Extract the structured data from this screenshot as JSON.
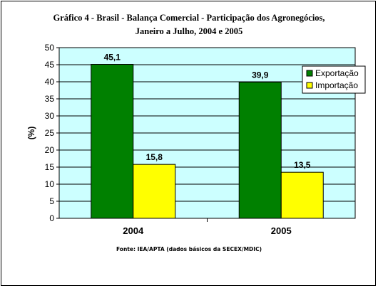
{
  "chart_data": {
    "type": "bar",
    "title": "Gráfico 4 - Brasil - Balança Comercial - Participação dos Agronegócios,",
    "subtitle": "Janeiro a Julho, 2004 e 2005",
    "ylabel": "(%)",
    "xlabel": "",
    "ylim": [
      0,
      50
    ],
    "yticks": [
      0,
      5,
      10,
      15,
      20,
      25,
      30,
      35,
      40,
      45,
      50
    ],
    "categories": [
      "2004",
      "2005"
    ],
    "series": [
      {
        "name": "Exportação",
        "values": [
          45.1,
          39.9
        ],
        "labels": [
          "45,1",
          "39,9"
        ],
        "color": "#008000"
      },
      {
        "name": "Importação",
        "values": [
          15.8,
          13.5
        ],
        "labels": [
          "15,8",
          "13,5"
        ],
        "color": "#FFFF00"
      }
    ],
    "plot_background": "#CCFFFF",
    "grid": true,
    "legend": "top-right",
    "source": "Fonte: IEA/APTA (dados básicos da SECEX/MDIC)"
  }
}
